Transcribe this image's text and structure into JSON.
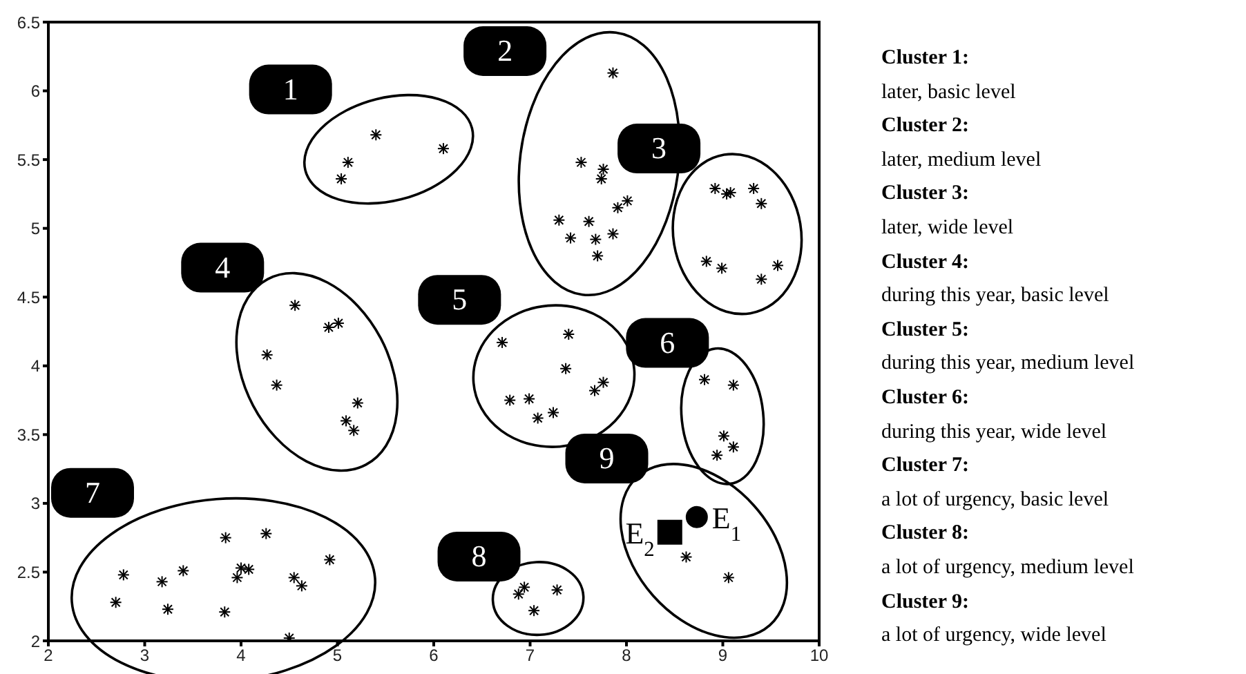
{
  "chart_data": {
    "type": "scatter",
    "xlim": [
      2,
      10
    ],
    "xticks": [
      2,
      3,
      4,
      5,
      6,
      7,
      8,
      9,
      10
    ],
    "ylim": [
      2,
      6.5
    ],
    "yticks": [
      2,
      2.5,
      3,
      3.5,
      4,
      4.5,
      5,
      5.5,
      6,
      6.5
    ],
    "grid": false,
    "legend": false,
    "marker": "cross",
    "series": [
      {
        "name": "1",
        "color": "#000000",
        "x": [
          5.11,
          5.04,
          5.4,
          6.1
        ],
        "values": [
          5.48,
          5.36,
          5.68,
          5.58
        ]
      },
      {
        "name": "2",
        "color": "#000000",
        "x": [
          7.86,
          7.53,
          7.76,
          7.74,
          7.91,
          8.01,
          7.3,
          7.61,
          7.42,
          7.68,
          7.86,
          7.7
        ],
        "values": [
          6.13,
          5.48,
          5.43,
          5.36,
          5.15,
          5.2,
          5.06,
          5.05,
          4.93,
          4.92,
          4.96,
          4.8
        ]
      },
      {
        "name": "3",
        "color": "#000000",
        "x": [
          8.92,
          9.04,
          9.08,
          9.32,
          9.4,
          8.83,
          8.99,
          9.4,
          9.57
        ],
        "values": [
          5.29,
          5.25,
          5.26,
          5.29,
          5.18,
          4.76,
          4.71,
          4.63,
          4.73
        ]
      },
      {
        "name": "4",
        "color": "#000000",
        "x": [
          4.56,
          4.91,
          5.01,
          4.27,
          4.37,
          5.21,
          5.09,
          5.17
        ],
        "values": [
          4.44,
          4.28,
          4.31,
          4.08,
          3.86,
          3.73,
          3.6,
          3.53
        ]
      },
      {
        "name": "5",
        "color": "#000000",
        "x": [
          6.71,
          7.4,
          7.37,
          6.79,
          6.99,
          7.08,
          7.24,
          7.67,
          7.76
        ],
        "values": [
          4.17,
          4.23,
          3.98,
          3.75,
          3.76,
          3.62,
          3.66,
          3.82,
          3.88
        ]
      },
      {
        "name": "6",
        "color": "#000000",
        "x": [
          8.81,
          9.11,
          9.01,
          9.11,
          8.94
        ],
        "values": [
          3.9,
          3.86,
          3.49,
          3.41,
          3.35
        ]
      },
      {
        "name": "7",
        "color": "#000000",
        "x": [
          2.7,
          2.78,
          3.18,
          3.24,
          3.4,
          3.84,
          3.83,
          3.96,
          4.0,
          4.08,
          4.26,
          4.55,
          4.63,
          4.92,
          4.5
        ],
        "values": [
          2.28,
          2.48,
          2.43,
          2.23,
          2.51,
          2.75,
          2.21,
          2.46,
          2.53,
          2.52,
          2.78,
          2.46,
          2.4,
          2.59,
          2.02
        ]
      },
      {
        "name": "8",
        "color": "#000000",
        "x": [
          6.88,
          6.94,
          7.04,
          7.28
        ],
        "values": [
          2.34,
          2.39,
          2.22,
          2.37
        ]
      },
      {
        "name": "9",
        "color": "#000000",
        "x": [
          8.62,
          9.06
        ],
        "values": [
          2.61,
          2.46
        ]
      },
      {
        "name": "E$_{1}$",
        "color": "#000000",
        "marker": "circle",
        "x": [
          8.73
        ],
        "values": [
          2.9
        ]
      },
      {
        "name": "E$_{2}$",
        "color": "#000000",
        "marker": "square",
        "x": [
          8.45
        ],
        "values": [
          2.79
        ]
      }
    ],
    "annotations": [
      "Cluster 1:",
      "later, basic level",
      "Cluster 2:",
      "later, medium level",
      "Cluster 3:",
      "later, wide level",
      "Cluster 4:",
      "during this year, basic level",
      "Cluster 5:",
      "during this year, medium level",
      "Cluster 6:",
      "during this year, wide level",
      "Cluster 7:",
      "a lot of urgency, basic level",
      "Cluster 8:",
      "a lot of urgency, medium level",
      "Cluster 9:",
      "a lot of urgency, wide level"
    ]
  }
}
